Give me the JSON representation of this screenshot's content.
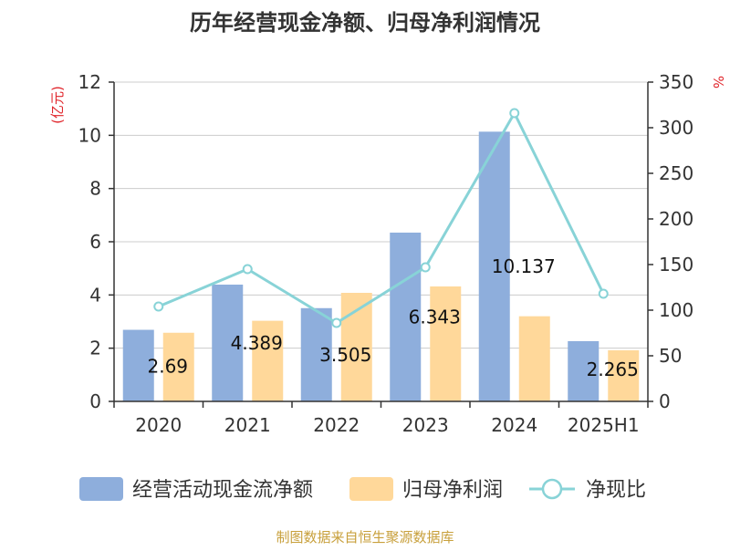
{
  "chart_data": {
    "type": "bar+line",
    "title": "历年经营现金净额、归母净利润情况",
    "categories": [
      "2020",
      "2021",
      "2022",
      "2023",
      "2024",
      "2025H1"
    ],
    "y_left": {
      "label": "(亿元)",
      "ylim": [
        0,
        12
      ],
      "ticks": [
        0,
        2,
        4,
        6,
        8,
        10,
        12
      ]
    },
    "y_right": {
      "label": "%",
      "ylim": [
        0,
        350
      ],
      "ticks": [
        0,
        50,
        100,
        150,
        200,
        250,
        300,
        350
      ]
    },
    "grid": true,
    "legend_position": "bottom",
    "series": [
      {
        "name": "经营活动现金流净额",
        "type": "bar",
        "axis": "left",
        "color": "#8eaedc",
        "values": [
          2.69,
          4.389,
          3.505,
          6.343,
          10.137,
          2.265
        ],
        "labels": [
          "2.69",
          "4.389",
          "3.505",
          "6.343",
          "10.137",
          "2.265"
        ]
      },
      {
        "name": "归母净利润",
        "type": "bar",
        "axis": "left",
        "color": "#ffd89a",
        "values": [
          2.58,
          3.03,
          4.08,
          4.32,
          3.2,
          1.92
        ]
      },
      {
        "name": "净现比",
        "type": "line",
        "axis": "right",
        "color": "#88d3d7",
        "values": [
          104,
          145,
          86,
          147,
          316,
          118
        ]
      }
    ],
    "source": "制图数据来自恒生聚源数据库"
  }
}
